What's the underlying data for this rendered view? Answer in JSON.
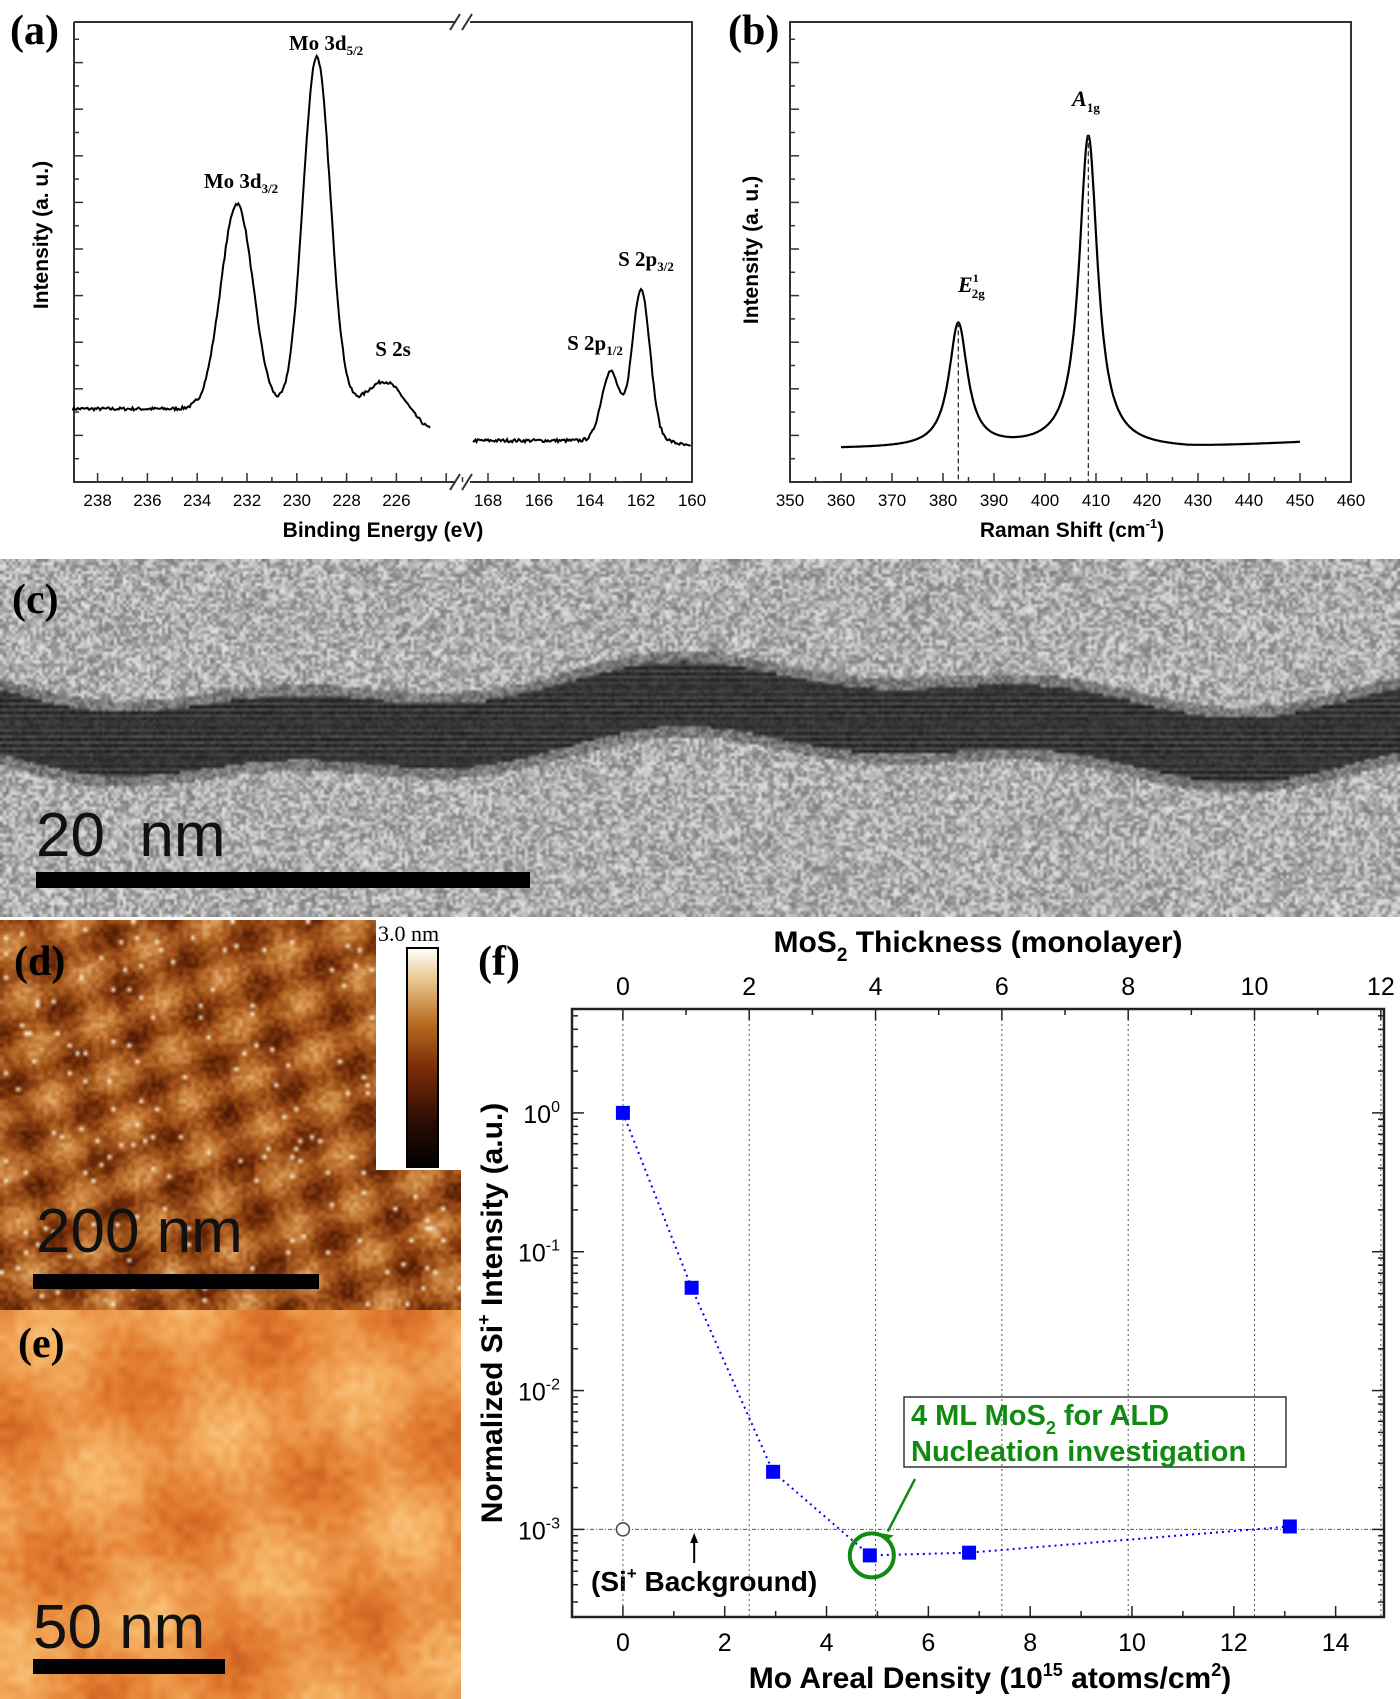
{
  "chart_data": [
    {
      "panel_label": "(a)",
      "type": "line",
      "xlabel": "Binding Energy (eV)",
      "ylabel": "Intensity (a. u.)",
      "x_axis_broken": true,
      "x_segments": [
        {
          "from": 239,
          "to": 223.4,
          "ticks": [
            "238",
            "236",
            "234",
            "232",
            "230",
            "228",
            "226"
          ]
        },
        {
          "from": 169,
          "to": 160,
          "ticks": [
            "168",
            "166",
            "164",
            "162",
            "160"
          ]
        }
      ],
      "y_tick_labels": false,
      "baseline_left": 15.5,
      "baseline_right": 9,
      "peaks": [
        {
          "name": "Mo 3d",
          "sub": "5/2",
          "position": 229.2,
          "height": 77,
          "width": 0.55
        },
        {
          "name": "Mo 3d",
          "sub": "3/2",
          "position": 232.4,
          "height": 45,
          "width": 0.65
        },
        {
          "name": "S 2s",
          "sub": "",
          "position": 226.4,
          "height": 8.5,
          "width": 0.8
        },
        {
          "name": "S 2p",
          "sub": "1/2",
          "position": 163.2,
          "height": 15,
          "width": 0.35
        },
        {
          "name": "S 2p",
          "sub": "3/2",
          "position": 162.0,
          "height": 33,
          "width": 0.35
        }
      ],
      "line_color": "#000000"
    },
    {
      "panel_label": "(b)",
      "type": "line",
      "xlabel": "Raman Shift (cm",
      "xlabel_sup": "-1",
      "xlabel_end": ")",
      "ylabel": "Intensity (a. u.)",
      "xlim": [
        350,
        460
      ],
      "x_ticks": [
        "350",
        "360",
        "370",
        "380",
        "390",
        "400",
        "410",
        "420",
        "430",
        "440",
        "450",
        "460"
      ],
      "data_range": [
        360,
        450
      ],
      "y_tick_labels": false,
      "peaks": [
        {
          "name": "E",
          "sup": "1",
          "sub": "2g",
          "position": 383,
          "height": 27,
          "width": 2.2
        },
        {
          "name": "A",
          "sup": "",
          "sub": "1g",
          "position": 408.5,
          "height": 68,
          "width": 2.2
        }
      ],
      "dashed_markers": [
        383,
        408.5
      ],
      "line_color": "#000000"
    },
    {
      "panel_label": "(f)",
      "type": "scatter",
      "xlabel": "Mo Areal Density (10",
      "xlabel_sup": "15",
      "xlabel_mid": " atoms/cm",
      "xlabel_sup2": "2",
      "xlabel_end": ")",
      "top_xlabel": "MoS",
      "top_xlabel_sub": "2",
      "top_xlabel_end": " Thickness (monolayer)",
      "ylabel": "Normalized Si",
      "ylabel_sup": "+",
      "ylabel_end": " Intensity (a.u.)",
      "xlim": [
        -1,
        14.95
      ],
      "x_ticks": [
        0,
        2,
        4,
        6,
        8,
        10,
        12,
        14
      ],
      "top_xlim": [
        0,
        12
      ],
      "top_x_ticks": [
        0,
        2,
        4,
        6,
        8,
        10,
        12
      ],
      "y_scale": "log",
      "ylim": [
        0.000234,
        5.6
      ],
      "y_ticks": [
        {
          "base": "10",
          "exp": "0",
          "value": 1
        },
        {
          "base": "10",
          "exp": "-1",
          "value": 0.1
        },
        {
          "base": "10",
          "exp": "-2",
          "value": 0.01
        },
        {
          "base": "10",
          "exp": "-3",
          "value": 0.001
        }
      ],
      "grid": "dotted vertical at top-axis ticks",
      "series": [
        {
          "x": [
            0,
            1.35,
            2.95,
            4.85,
            6.8,
            13.1
          ],
          "y": [
            1.0,
            0.055,
            0.0026,
            0.00065,
            0.00068,
            0.00105
          ],
          "color": "#0000ff",
          "marker": "square",
          "line": "dotted"
        }
      ],
      "background": {
        "x": 0,
        "y": 0.001,
        "label": "(Si",
        "label_sup": "+",
        "label_end": " Background)",
        "marker": "open-circle"
      },
      "annotation": {
        "line1": "4 ML MoS",
        "line1_sub": "2",
        "line1_end": " for ALD",
        "line2": "Nucleation investigation",
        "color": "#118a11",
        "target_x": 4.85
      }
    }
  ],
  "images": {
    "tem": {
      "label": "(c)",
      "scale_bar": "20  nm"
    },
    "afm_large": {
      "label": "(d)",
      "scale_bar": "200 nm",
      "colorbar_max": "3.0 nm"
    },
    "afm_small": {
      "label": "(e)",
      "scale_bar": "50 nm"
    }
  }
}
